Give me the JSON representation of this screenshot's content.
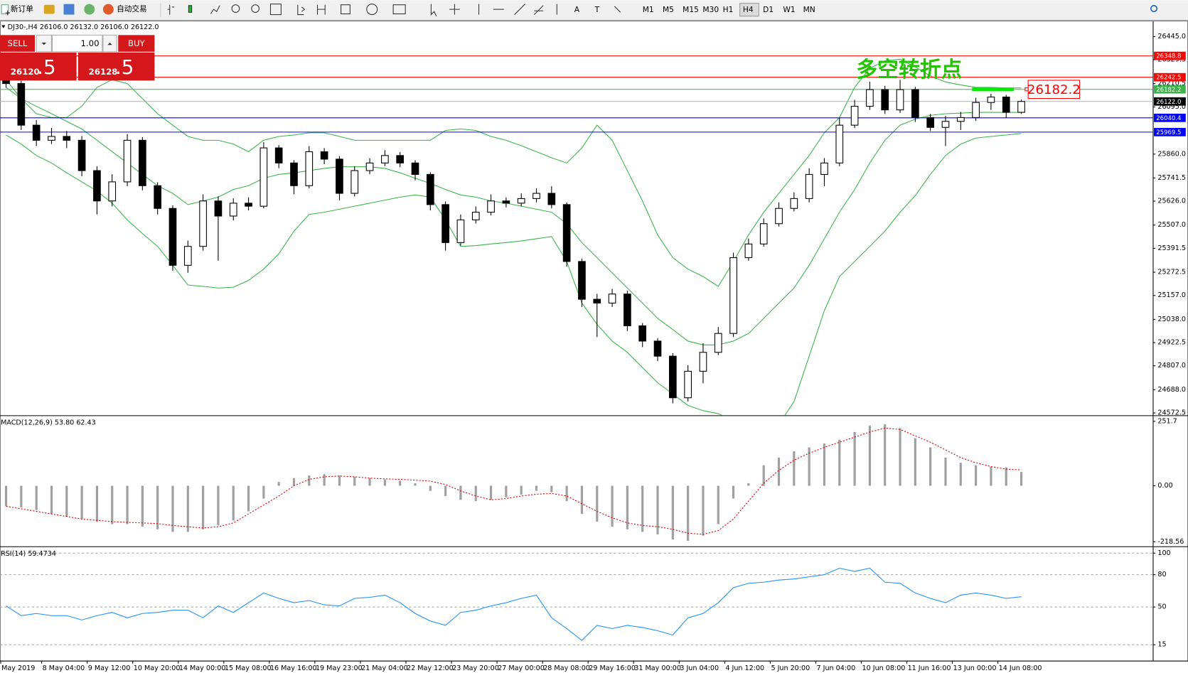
{
  "toolbar": {
    "new_order": "新订单",
    "auto_trading": "自动交易",
    "timeframes": [
      "M1",
      "M5",
      "M15",
      "M30",
      "H1",
      "H4",
      "D1",
      "W1",
      "MN"
    ],
    "active_timeframe": "H4"
  },
  "trade_panel": {
    "sell_label": "SELL",
    "buy_label": "BUY",
    "lot": "1.00",
    "sell_price": "26120",
    "sell_pips": ".5",
    "buy_price": "26128",
    "buy_pips": ".5"
  },
  "x_labels": [
    "May 2019",
    "8 May 04:00",
    "9 May 12:00",
    "10 May 20:00",
    "14 May 00:00",
    "15 May 08:00",
    "16 May 16:00",
    "19 May 23:00",
    "21 May 04:00",
    "22 May 12:00",
    "23 May 20:00",
    "27 May 00:00",
    "28 May 08:00",
    "29 May 16:00",
    "31 May 00:00",
    "3 Jun 04:00",
    "4 Jun 12:00",
    "5 Jun 20:00",
    "7 Jun 04:00",
    "10 Jun 08:00",
    "11 Jun 16:00",
    "13 Jun 00:00",
    "14 Jun 08:00"
  ],
  "chart_data": [
    {
      "type": "candlestick",
      "header": "DJ30-,H4 26106.0 26132.0 26106.0 26122.0",
      "annotation": "多空转折点",
      "annotation_color": "#22c400",
      "callout": {
        "value": 26182.2,
        "color": "#ff0000",
        "marker_color": "#00ee00"
      },
      "up_color": "#ffffff",
      "down_color": "#000000",
      "open": [
        26230,
        26211,
        26004,
        25929,
        25948,
        25929,
        25778,
        25627,
        25722,
        25929,
        25703,
        25590,
        25307,
        25401,
        25627,
        25552,
        25616,
        25601,
        25891,
        25816,
        25703,
        25872,
        25835,
        25665,
        25778,
        25816,
        25853,
        25816,
        25759,
        25609,
        25420,
        25533,
        25571,
        25627,
        25616,
        25639,
        25665,
        25609,
        25326,
        25138,
        25119,
        25164,
        25006,
        24930,
        24855,
        24648,
        24780,
        24874,
        24968,
        25345,
        25413,
        25514,
        25590,
        25639,
        25759,
        25816,
        26004,
        26098,
        26181,
        26080,
        26181,
        26042,
        25993,
        26023,
        26042,
        26117,
        26144,
        26068
      ],
      "high": [
        26260,
        26225,
        26030,
        25990,
        25975,
        25950,
        25800,
        25760,
        25960,
        25945,
        25720,
        25605,
        25430,
        25660,
        25650,
        25640,
        25645,
        25920,
        25905,
        25830,
        25900,
        25890,
        25850,
        25800,
        25840,
        25880,
        25870,
        25830,
        25770,
        25625,
        25560,
        25600,
        25660,
        25645,
        25665,
        25690,
        25700,
        25620,
        25340,
        25165,
        25190,
        25180,
        25020,
        24945,
        24870,
        24810,
        24920,
        25000,
        25370,
        25440,
        25540,
        25620,
        25670,
        25790,
        25840,
        26040,
        26130,
        26220,
        26200,
        26230,
        26195,
        26060,
        26050,
        26070,
        26140,
        26160,
        26155,
        26132
      ],
      "low": [
        26190,
        25980,
        25900,
        25910,
        25890,
        25750,
        25560,
        25600,
        25700,
        25680,
        25560,
        25280,
        25270,
        25380,
        25330,
        25530,
        25580,
        25590,
        25790,
        25660,
        25690,
        25810,
        25630,
        25650,
        25760,
        25800,
        25795,
        25730,
        25580,
        25380,
        25405,
        25515,
        25555,
        25595,
        25600,
        25620,
        25590,
        25300,
        25100,
        24950,
        25100,
        24980,
        24900,
        24830,
        24620,
        24630,
        24720,
        24860,
        24950,
        25330,
        25400,
        25500,
        25575,
        25620,
        25700,
        25800,
        25990,
        26080,
        26060,
        26065,
        26020,
        25975,
        25900,
        25980,
        26025,
        26080,
        26040,
        26060
      ],
      "close": [
        26211,
        26004,
        25929,
        25948,
        25929,
        25778,
        25627,
        25722,
        25929,
        25703,
        25590,
        25307,
        25401,
        25627,
        25552,
        25616,
        25601,
        25891,
        25816,
        25703,
        25872,
        25835,
        25665,
        25778,
        25816,
        25853,
        25816,
        25759,
        25609,
        25420,
        25533,
        25571,
        25627,
        25616,
        25639,
        25665,
        25609,
        25326,
        25138,
        25119,
        25164,
        25006,
        24930,
        24855,
        24648,
        24780,
        24874,
        24968,
        25345,
        25413,
        25514,
        25590,
        25639,
        25759,
        25816,
        26004,
        26098,
        26181,
        26080,
        26181,
        26042,
        25993,
        26023,
        26042,
        26117,
        26144,
        26068,
        26122
      ],
      "bollinger": {
        "color": "#3cb44b",
        "upper": [
          26230,
          26136,
          26061,
          26042,
          26042,
          26098,
          26192,
          26230,
          26211,
          26136,
          26061,
          26004,
          25948,
          25929,
          25929,
          25910,
          25872,
          25929,
          25948,
          25955,
          25966,
          25966,
          25948,
          25929,
          25929,
          25929,
          25929,
          25929,
          25929,
          25978,
          25985,
          25978,
          25948,
          25929,
          25902,
          25872,
          25842,
          25816,
          25891,
          26004,
          25929,
          25778,
          25627,
          25458,
          25345,
          25288,
          25251,
          25202,
          25326,
          25458,
          25571,
          25665,
          25759,
          25853,
          25966,
          26042,
          26192,
          26287,
          26324,
          26332,
          26294,
          26249,
          26219,
          26204,
          26192,
          26192,
          26189,
          26189
        ],
        "middle": [
          26192,
          26136,
          26098,
          26061,
          26023,
          25985,
          25929,
          25872,
          25816,
          25759,
          25703,
          25665,
          25609,
          25627,
          25646,
          25684,
          25703,
          25740,
          25759,
          25767,
          25778,
          25789,
          25797,
          25797,
          25797,
          25789,
          25767,
          25740,
          25714,
          25684,
          25657,
          25646,
          25627,
          25616,
          25601,
          25586,
          25571,
          25514,
          25420,
          25345,
          25269,
          25194,
          25119,
          25043,
          24987,
          24930,
          24911,
          24911,
          24930,
          24968,
          25043,
          25119,
          25194,
          25307,
          25439,
          25571,
          25684,
          25816,
          25929,
          26004,
          26034,
          26053,
          26061,
          26064,
          26068,
          26068,
          26068,
          26068
        ],
        "lower": [
          25955,
          25910,
          25853,
          25816,
          25767,
          25722,
          25676,
          25616,
          25533,
          25465,
          25401,
          25307,
          25209,
          25202,
          25194,
          25198,
          25232,
          25288,
          25364,
          25477,
          25560,
          25571,
          25586,
          25601,
          25616,
          25631,
          25646,
          25657,
          25646,
          25533,
          25401,
          25405,
          25413,
          25420,
          25428,
          25439,
          25450,
          25326,
          25119,
          25013,
          24930,
          24874,
          24798,
          24723,
          24667,
          24610,
          24584,
          24569,
          24535,
          24508,
          24497,
          24516,
          24629,
          24855,
          25081,
          25251,
          25326,
          25401,
          25477,
          25571,
          25654,
          25759,
          25853,
          25910,
          25940,
          25948,
          25955,
          25963
        ]
      },
      "levels": [
        {
          "value": 26348.8,
          "color": "#ff0000"
        },
        {
          "value": 26242.5,
          "color": "#ff0000"
        },
        {
          "value": 26182.2,
          "color": "#3cb44b"
        },
        {
          "value": {
            "value": 26122,
            "label": "26122.0"
          },
          "color": "#000000"
        },
        {
          "value": 26040.4,
          "color": "#0000ff"
        },
        {
          "value": 25969.5,
          "color": "#0000ff"
        }
      ],
      "ylim": [
        24561,
        26520
      ],
      "yticks": [
        {
          "value": 26445,
          "label": "26445.0"
        },
        26329.5,
        26210.5,
        {
          "value": 26095,
          "label": "26095.0"
        },
        {
          "value": 25860,
          "label": "25860.0"
        },
        25741.5,
        {
          "value": 25626,
          "label": "25626.0"
        },
        {
          "value": 25507,
          "label": "25507.0"
        },
        25391.5,
        25272.5,
        {
          "value": 25157,
          "label": "25157.0"
        },
        {
          "value": 25038,
          "label": "25038.0"
        },
        24922.5,
        {
          "value": 24807,
          "label": "24807.0"
        },
        {
          "value": 24688,
          "label": "24688.0"
        },
        24572.5
      ]
    },
    {
      "type": "macd",
      "title": "MACD(12,26,9) 53.80 62.43",
      "hist_color": "#a0a0a0",
      "signal_color": "#e00000",
      "values": [
        -80,
        -85,
        -95,
        -110,
        -120,
        -130,
        -140,
        -150,
        -150,
        -160,
        -170,
        -180,
        -180,
        -170,
        -155,
        -135,
        -100,
        -50,
        15,
        30,
        40,
        45,
        40,
        35,
        30,
        25,
        20,
        10,
        -20,
        -40,
        -55,
        -60,
        -55,
        -45,
        -35,
        -20,
        -25,
        -60,
        -110,
        -140,
        -160,
        -170,
        -180,
        -190,
        -210,
        -215,
        -195,
        -150,
        -50,
        10,
        80,
        110,
        135,
        150,
        165,
        180,
        210,
        235,
        240,
        225,
        185,
        150,
        110,
        90,
        80,
        75,
        72,
        54
      ],
      "signal": [
        -80,
        -90,
        -100,
        -110,
        -120,
        -130,
        -135,
        -140,
        -143,
        -145,
        -148,
        -155,
        -160,
        -165,
        -160,
        -145,
        -110,
        -75,
        -40,
        0,
        25,
        35,
        38,
        35,
        30,
        27,
        25,
        22,
        18,
        5,
        -20,
        -40,
        -55,
        -50,
        -40,
        -33,
        -30,
        -40,
        -70,
        -100,
        -125,
        -145,
        -155,
        -160,
        -170,
        -185,
        -190,
        -175,
        -130,
        -60,
        10,
        60,
        100,
        127,
        150,
        170,
        190,
        210,
        225,
        220,
        195,
        170,
        140,
        110,
        90,
        75,
        65,
        62
      ],
      "ylim": [
        -233.4,
        269.4
      ],
      "yticks": [
        251.7,
        {
          "value": 0,
          "label": "0.00"
        },
        -218.56
      ],
      "grid": false
    },
    {
      "type": "rsi",
      "title": "RSI(14) 59.4734",
      "color": "#1e90ff",
      "values": [
        51,
        42,
        44,
        42,
        42,
        38,
        42,
        45,
        40,
        44,
        45,
        47,
        47,
        40,
        51,
        45,
        54,
        63,
        58,
        54,
        56,
        52,
        51,
        58,
        59,
        61,
        54,
        44,
        37,
        33,
        45,
        47,
        51,
        54,
        58,
        61,
        40,
        30,
        19,
        33,
        30,
        33,
        31,
        28,
        24,
        40,
        44,
        54,
        68,
        72,
        73,
        75,
        76,
        78,
        80,
        86,
        83,
        86,
        73,
        72,
        63,
        58,
        54,
        61,
        63,
        61,
        58,
        59.5
      ],
      "ylim": [
        0.25,
        104.9
      ],
      "yticks": [
        100,
        80,
        50,
        15
      ],
      "grid": true
    }
  ]
}
